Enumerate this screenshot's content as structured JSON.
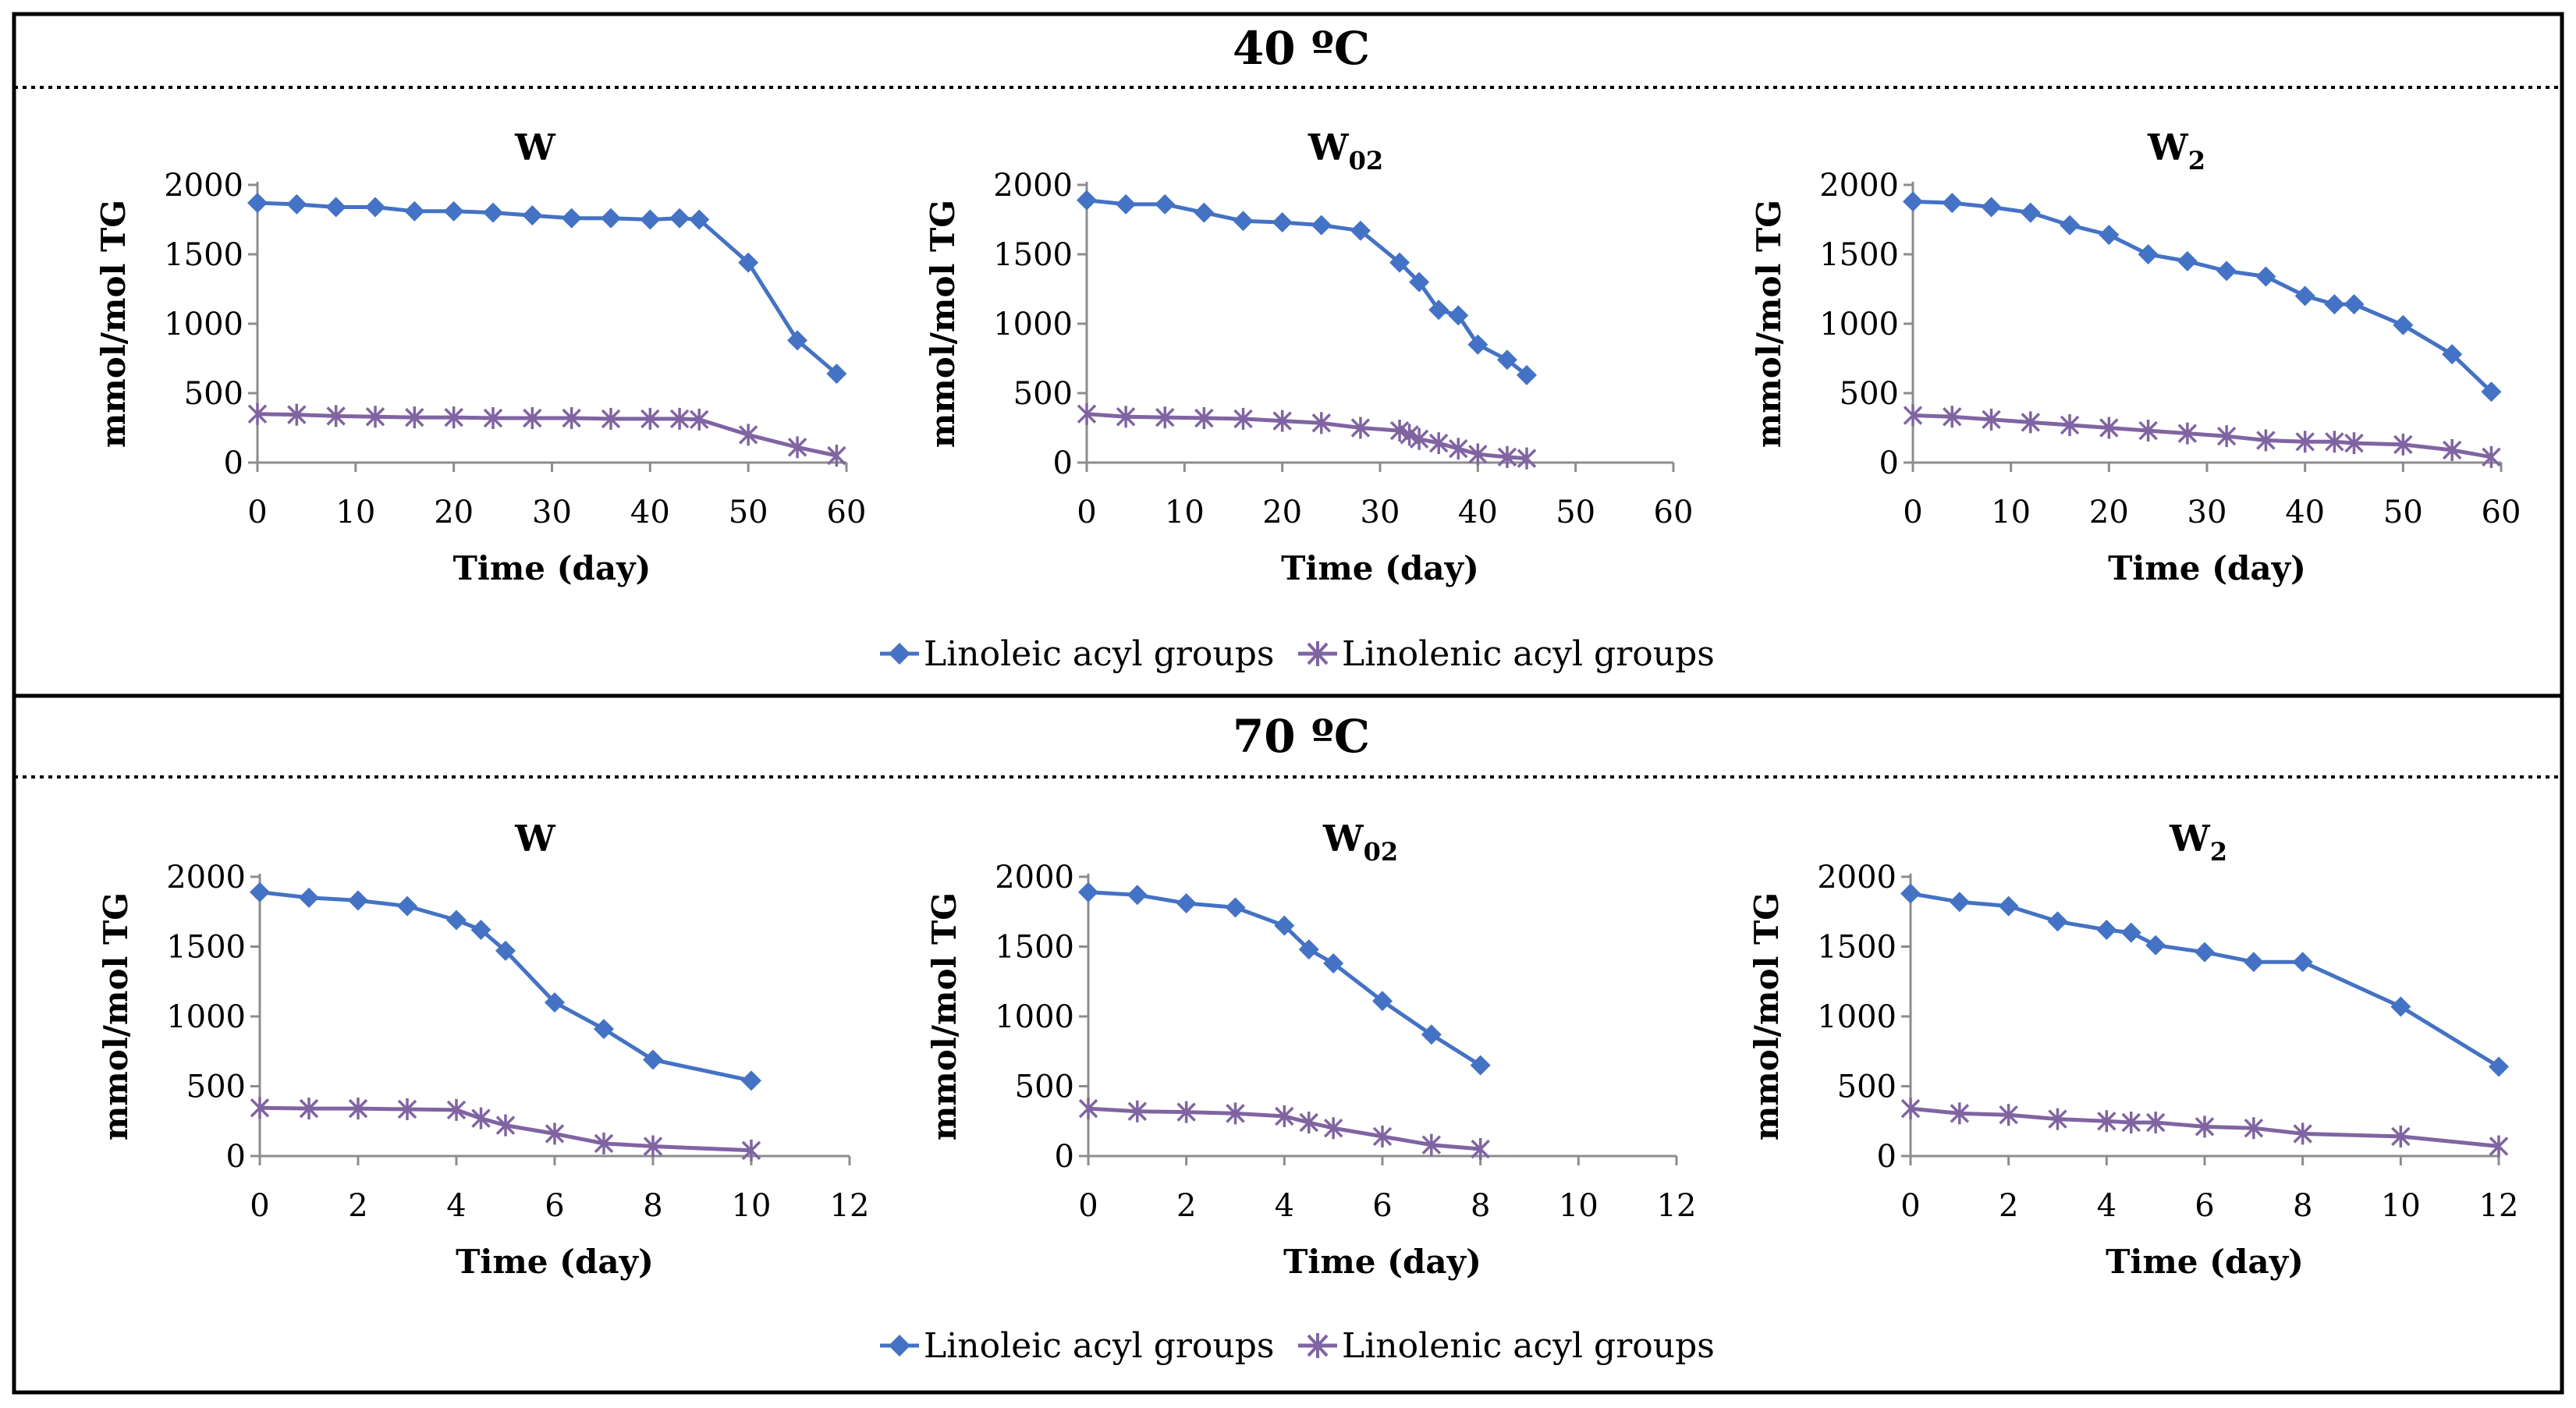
{
  "panels": [
    {
      "title": "40 ºC",
      "legend": {
        "linoleic": "Linoleic acyl groups",
        "linolenic": "Linolenic acyl groups"
      }
    },
    {
      "title": "70 ºC",
      "legend": {
        "linoleic": "Linoleic acyl groups",
        "linolenic": "Linolenic acyl groups"
      }
    }
  ],
  "colors": {
    "linoleic": "#4472C4",
    "linolenic": "#8064A2",
    "axis": "#8c8c8c"
  },
  "chart_data": [
    {
      "type": "line",
      "panel": "40 ºC",
      "title": "W",
      "title_sub": "",
      "xlabel": "Time (day)",
      "ylabel": "mmol/mol TG",
      "xlim": [
        0,
        60
      ],
      "ylim": [
        0,
        2000
      ],
      "x_ticks": [
        0,
        10,
        20,
        30,
        40,
        50,
        60
      ],
      "y_ticks": [
        0,
        500,
        1000,
        1500,
        2000
      ],
      "series": [
        {
          "name": "Linoleic acyl groups",
          "marker": "diamond",
          "x": [
            0,
            4,
            8,
            12,
            16,
            20,
            24,
            28,
            32,
            36,
            40,
            43,
            45,
            50,
            55,
            59
          ],
          "values": [
            1870,
            1860,
            1840,
            1840,
            1810,
            1810,
            1800,
            1780,
            1760,
            1760,
            1750,
            1760,
            1750,
            1440,
            880,
            640
          ]
        },
        {
          "name": "Linolenic acyl groups",
          "marker": "star",
          "x": [
            0,
            4,
            8,
            12,
            16,
            20,
            24,
            28,
            32,
            36,
            40,
            43,
            45,
            50,
            55,
            59
          ],
          "values": [
            350,
            345,
            335,
            330,
            325,
            325,
            320,
            320,
            320,
            315,
            315,
            315,
            310,
            200,
            110,
            50
          ]
        }
      ]
    },
    {
      "type": "line",
      "panel": "40 ºC",
      "title": "W",
      "title_sub": "02",
      "xlabel": "Time (day)",
      "ylabel": "mmol/mol TG",
      "xlim": [
        0,
        60
      ],
      "ylim": [
        0,
        2000
      ],
      "x_ticks": [
        0,
        10,
        20,
        30,
        40,
        50,
        60
      ],
      "y_ticks": [
        0,
        500,
        1000,
        1500,
        2000
      ],
      "series": [
        {
          "name": "Linoleic acyl groups",
          "marker": "diamond",
          "x": [
            0,
            4,
            8,
            12,
            16,
            20,
            24,
            28,
            32,
            34,
            36,
            38,
            40,
            43,
            45
          ],
          "values": [
            1890,
            1860,
            1860,
            1800,
            1740,
            1730,
            1710,
            1670,
            1440,
            1300,
            1100,
            1060,
            850,
            740,
            630
          ]
        },
        {
          "name": "Linolenic acyl groups",
          "marker": "star",
          "x": [
            0,
            4,
            8,
            12,
            16,
            20,
            24,
            28,
            32,
            33,
            34,
            36,
            38,
            40,
            43,
            45
          ],
          "values": [
            350,
            330,
            325,
            320,
            315,
            300,
            285,
            250,
            230,
            200,
            170,
            140,
            100,
            60,
            40,
            30
          ]
        }
      ]
    },
    {
      "type": "line",
      "panel": "40 ºC",
      "title": "W",
      "title_sub": "2",
      "xlabel": "Time (day)",
      "ylabel": "mmol/mol TG",
      "xlim": [
        0,
        60
      ],
      "ylim": [
        0,
        2000
      ],
      "x_ticks": [
        0,
        10,
        20,
        30,
        40,
        50,
        60
      ],
      "y_ticks": [
        0,
        500,
        1000,
        1500,
        2000
      ],
      "series": [
        {
          "name": "Linoleic acyl groups",
          "marker": "diamond",
          "x": [
            0,
            4,
            8,
            12,
            16,
            20,
            24,
            28,
            32,
            36,
            40,
            43,
            45,
            50,
            55,
            59
          ],
          "values": [
            1880,
            1870,
            1840,
            1800,
            1710,
            1640,
            1500,
            1450,
            1380,
            1340,
            1200,
            1140,
            1140,
            990,
            780,
            510
          ]
        },
        {
          "name": "Linolenic acyl groups",
          "marker": "star",
          "x": [
            0,
            4,
            8,
            12,
            16,
            20,
            24,
            28,
            32,
            36,
            40,
            43,
            45,
            50,
            55,
            59
          ],
          "values": [
            340,
            330,
            310,
            290,
            270,
            250,
            230,
            210,
            190,
            160,
            150,
            150,
            140,
            130,
            90,
            40
          ]
        }
      ]
    },
    {
      "type": "line",
      "panel": "70 ºC",
      "title": "W",
      "title_sub": "",
      "xlabel": "Time (day)",
      "ylabel": "mmol/mol TG",
      "xlim": [
        0,
        12
      ],
      "ylim": [
        0,
        2000
      ],
      "x_ticks": [
        0,
        2,
        4,
        6,
        8,
        10,
        12
      ],
      "y_ticks": [
        0,
        500,
        1000,
        1500,
        2000
      ],
      "series": [
        {
          "name": "Linoleic acyl groups",
          "marker": "diamond",
          "x": [
            0,
            1,
            2,
            3,
            4,
            4.5,
            5,
            6,
            7,
            8,
            10
          ],
          "values": [
            1890,
            1850,
            1830,
            1790,
            1690,
            1620,
            1470,
            1100,
            910,
            690,
            540
          ]
        },
        {
          "name": "Linolenic acyl groups",
          "marker": "star",
          "x": [
            0,
            1,
            2,
            3,
            4,
            4.5,
            5,
            6,
            7,
            8,
            10
          ],
          "values": [
            345,
            340,
            340,
            335,
            330,
            270,
            220,
            160,
            90,
            70,
            40
          ]
        }
      ]
    },
    {
      "type": "line",
      "panel": "70 ºC",
      "title": "W",
      "title_sub": "02",
      "xlabel": "Time (day)",
      "ylabel": "mmol/mol TG",
      "xlim": [
        0,
        12
      ],
      "ylim": [
        0,
        2000
      ],
      "x_ticks": [
        0,
        2,
        4,
        6,
        8,
        10,
        12
      ],
      "y_ticks": [
        0,
        500,
        1000,
        1500,
        2000
      ],
      "series": [
        {
          "name": "Linoleic acyl groups",
          "marker": "diamond",
          "x": [
            0,
            1,
            2,
            3,
            4,
            4.5,
            5,
            6,
            7,
            8
          ],
          "values": [
            1890,
            1870,
            1810,
            1780,
            1650,
            1480,
            1380,
            1110,
            870,
            650
          ]
        },
        {
          "name": "Linolenic acyl groups",
          "marker": "star",
          "x": [
            0,
            1,
            2,
            3,
            4,
            4.5,
            5,
            6,
            7,
            8
          ],
          "values": [
            340,
            320,
            315,
            305,
            285,
            240,
            200,
            140,
            80,
            50
          ]
        }
      ]
    },
    {
      "type": "line",
      "panel": "70 ºC",
      "title": "W",
      "title_sub": "2",
      "xlabel": "Time (day)",
      "ylabel": "mmol/mol TG",
      "xlim": [
        0,
        12
      ],
      "ylim": [
        0,
        2000
      ],
      "x_ticks": [
        0,
        2,
        4,
        6,
        8,
        10,
        12
      ],
      "y_ticks": [
        0,
        500,
        1000,
        1500,
        2000
      ],
      "series": [
        {
          "name": "Linoleic acyl groups",
          "marker": "diamond",
          "x": [
            0,
            1,
            2,
            3,
            4,
            4.5,
            5,
            6,
            7,
            8,
            10,
            12
          ],
          "values": [
            1880,
            1820,
            1790,
            1680,
            1620,
            1600,
            1510,
            1460,
            1390,
            1390,
            1070,
            640
          ]
        },
        {
          "name": "Linolenic acyl groups",
          "marker": "star",
          "x": [
            0,
            1,
            2,
            3,
            4,
            4.5,
            5,
            6,
            7,
            8,
            10,
            12
          ],
          "values": [
            340,
            305,
            295,
            265,
            250,
            240,
            240,
            210,
            200,
            160,
            140,
            70
          ]
        }
      ]
    }
  ]
}
